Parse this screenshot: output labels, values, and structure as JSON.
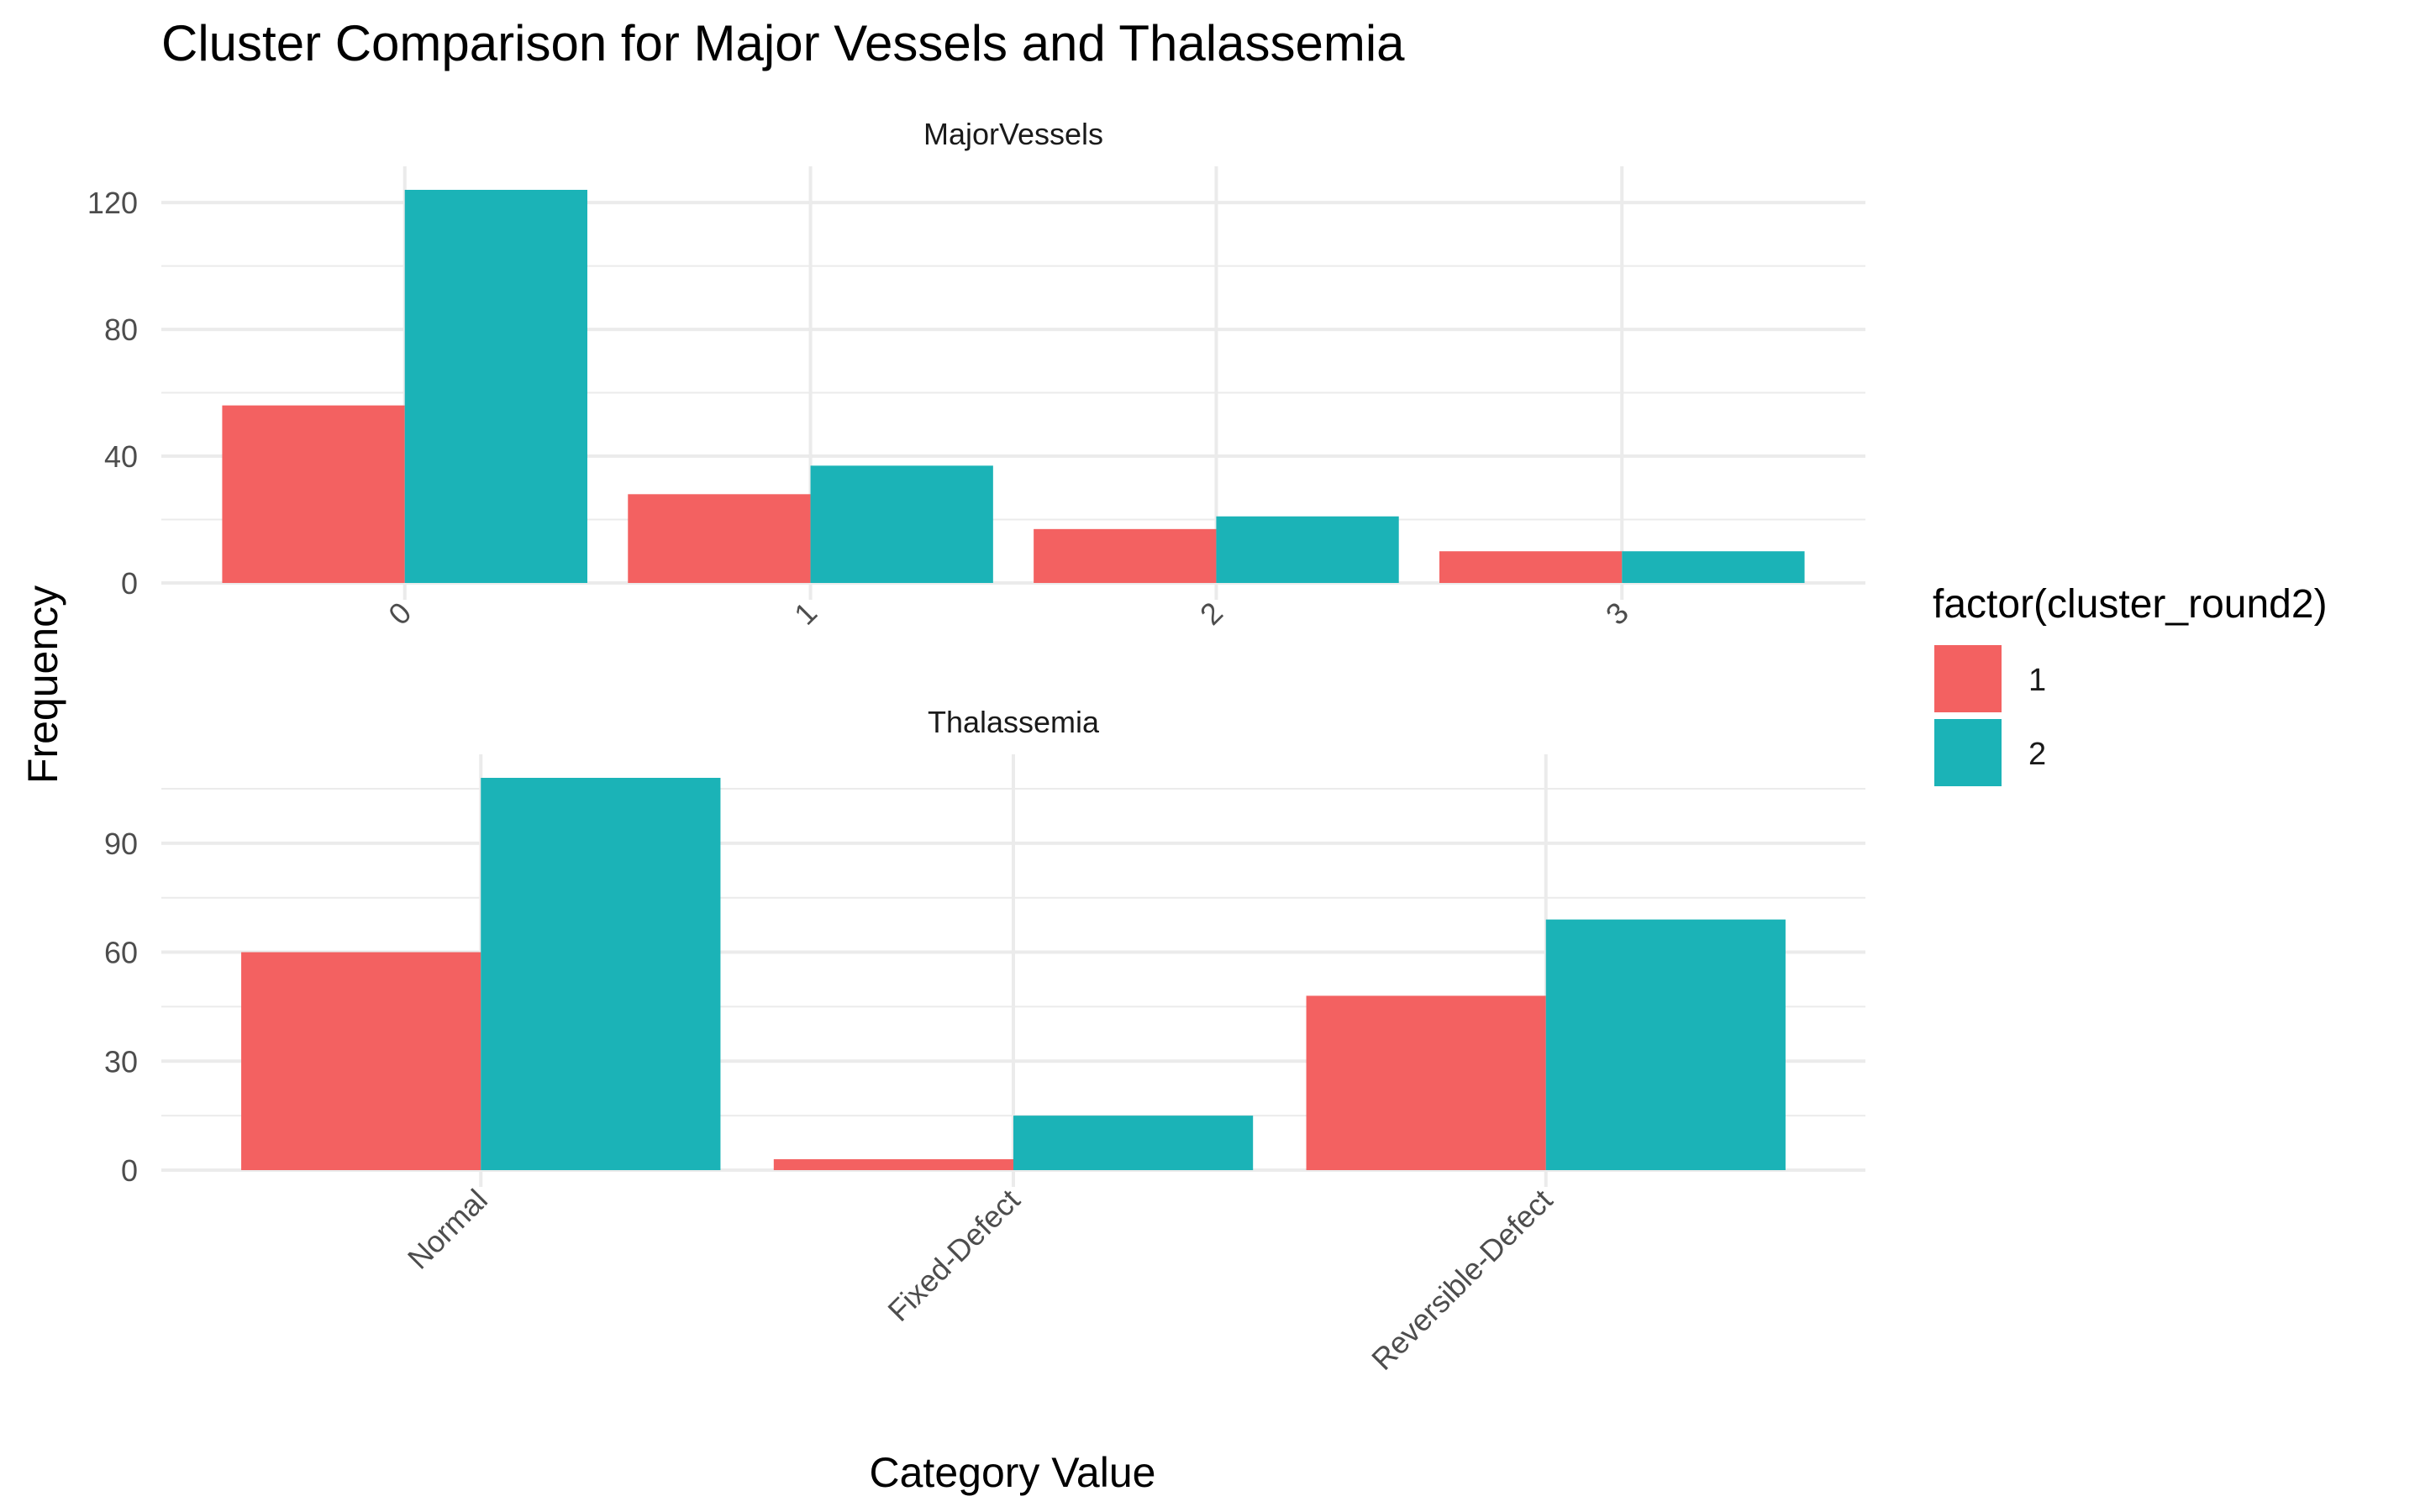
{
  "chart_data": {
    "type": "bar",
    "title": "Cluster Comparison for Major Vessels and Thalassemia",
    "xlabel": "Category Value",
    "ylabel": "Frequency",
    "legend": {
      "title": "factor(cluster_round2)",
      "position": "right",
      "items": [
        {
          "label": "1",
          "color": "#F8766D"
        },
        {
          "label": "2",
          "color": "#00BFC4"
        }
      ]
    },
    "panels": [
      {
        "strip": "MajorVessels",
        "categories": [
          "0",
          "1",
          "2",
          "3"
        ],
        "series": [
          {
            "name": "1",
            "values": [
              56,
              28,
              17,
              10
            ]
          },
          {
            "name": "2",
            "values": [
              124,
              37,
              21,
              10
            ]
          }
        ],
        "ylim": [
          0,
          124
        ],
        "yticks": [
          0,
          40,
          80,
          120
        ],
        "tick_label_angle": 45
      },
      {
        "strip": "Thalassemia",
        "categories": [
          "Normal",
          "Fixed-Defect",
          "Reversible-Defect"
        ],
        "series": [
          {
            "name": "1",
            "values": [
              60,
              3,
              48
            ]
          },
          {
            "name": "2",
            "values": [
              108,
              15,
              69
            ]
          }
        ],
        "ylim": [
          0,
          108
        ],
        "yticks": [
          0,
          30,
          60,
          90
        ],
        "tick_label_angle": 45
      }
    ],
    "grid": true,
    "colors": {
      "cluster_1": "#F36161",
      "cluster_2": "#1BB3B7",
      "grid": "#EBEBEB"
    }
  }
}
